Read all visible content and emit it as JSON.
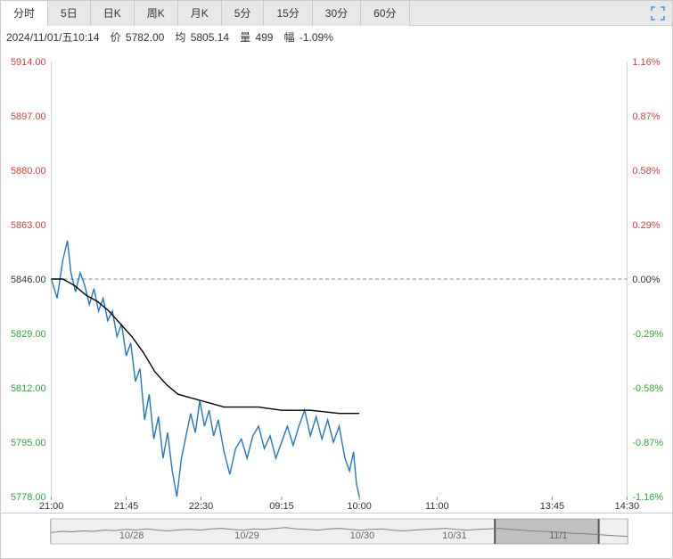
{
  "tabs": {
    "items": [
      "分时",
      "5日",
      "日K",
      "周K",
      "月K",
      "5分",
      "15分",
      "30分",
      "60分"
    ],
    "active_index": 0
  },
  "info": {
    "datetime": "2024/11/01/五10:14",
    "price_label": "价",
    "price": "5782.00",
    "avg_label": "均",
    "avg": "5805.14",
    "vol_label": "量",
    "vol": "499",
    "pct_label": "幅",
    "pct": "-1.09%"
  },
  "chart": {
    "type": "line",
    "center_value": 5846.0,
    "ylim": [
      5778.0,
      5914.0
    ],
    "left_ticks": [
      {
        "v": 5914.0,
        "label": "5914.00",
        "color": "#d83d3d"
      },
      {
        "v": 5897.0,
        "label": "5897.00",
        "color": "#d83d3d"
      },
      {
        "v": 5880.0,
        "label": "5880.00",
        "color": "#d83d3d"
      },
      {
        "v": 5863.0,
        "label": "5863.00",
        "color": "#d83d3d"
      },
      {
        "v": 5846.0,
        "label": "5846.00",
        "color": "#333333"
      },
      {
        "v": 5829.0,
        "label": "5829.00",
        "color": "#2ea836"
      },
      {
        "v": 5812.0,
        "label": "5812.00",
        "color": "#2ea836"
      },
      {
        "v": 5795.0,
        "label": "5795.00",
        "color": "#2ea836"
      },
      {
        "v": 5778.0,
        "label": "5778.00",
        "color": "#2ea836"
      }
    ],
    "right_ticks": [
      {
        "v": 5914.0,
        "label": "1.16%",
        "color": "#d83d3d"
      },
      {
        "v": 5897.0,
        "label": "0.87%",
        "color": "#d83d3d"
      },
      {
        "v": 5880.0,
        "label": "0.58%",
        "color": "#d83d3d"
      },
      {
        "v": 5863.0,
        "label": "0.29%",
        "color": "#d83d3d"
      },
      {
        "v": 5846.0,
        "label": "0.00%",
        "color": "#333333"
      },
      {
        "v": 5829.0,
        "label": "-0.29%",
        "color": "#2ea836"
      },
      {
        "v": 5812.0,
        "label": "-0.58%",
        "color": "#2ea836"
      },
      {
        "v": 5795.0,
        "label": "-0.87%",
        "color": "#2ea836"
      },
      {
        "v": 5778.0,
        "label": "-1.16%",
        "color": "#2ea836"
      }
    ],
    "x_ticks": [
      {
        "t": 0.0,
        "label": "21:00"
      },
      {
        "t": 0.13,
        "label": "21:45"
      },
      {
        "t": 0.26,
        "label": "22:30"
      },
      {
        "t": 0.4,
        "label": "09:15"
      },
      {
        "t": 0.535,
        "label": "10:00"
      },
      {
        "t": 0.67,
        "label": "11:00"
      },
      {
        "t": 0.87,
        "label": "13:45"
      },
      {
        "t": 1.0,
        "label": "14:30"
      }
    ],
    "grid_color": "#d0d0d0",
    "price_line_color": "#2176c7",
    "avg_line_color": "#000000",
    "price_line_width": 1.4,
    "avg_line_width": 1.4,
    "price_series": [
      {
        "t": 0.0,
        "v": 5846
      },
      {
        "t": 0.01,
        "v": 5840
      },
      {
        "t": 0.02,
        "v": 5852
      },
      {
        "t": 0.028,
        "v": 5858
      },
      {
        "t": 0.034,
        "v": 5848
      },
      {
        "t": 0.042,
        "v": 5842
      },
      {
        "t": 0.05,
        "v": 5848
      },
      {
        "t": 0.058,
        "v": 5844
      },
      {
        "t": 0.066,
        "v": 5838
      },
      {
        "t": 0.074,
        "v": 5843
      },
      {
        "t": 0.082,
        "v": 5836
      },
      {
        "t": 0.09,
        "v": 5840
      },
      {
        "t": 0.098,
        "v": 5833
      },
      {
        "t": 0.106,
        "v": 5836
      },
      {
        "t": 0.114,
        "v": 5828
      },
      {
        "t": 0.122,
        "v": 5832
      },
      {
        "t": 0.13,
        "v": 5822
      },
      {
        "t": 0.138,
        "v": 5826
      },
      {
        "t": 0.146,
        "v": 5814
      },
      {
        "t": 0.154,
        "v": 5818
      },
      {
        "t": 0.162,
        "v": 5802
      },
      {
        "t": 0.17,
        "v": 5810
      },
      {
        "t": 0.178,
        "v": 5796
      },
      {
        "t": 0.186,
        "v": 5803
      },
      {
        "t": 0.194,
        "v": 5790
      },
      {
        "t": 0.202,
        "v": 5798
      },
      {
        "t": 0.21,
        "v": 5786
      },
      {
        "t": 0.218,
        "v": 5778
      },
      {
        "t": 0.226,
        "v": 5790
      },
      {
        "t": 0.234,
        "v": 5797
      },
      {
        "t": 0.242,
        "v": 5804
      },
      {
        "t": 0.25,
        "v": 5798
      },
      {
        "t": 0.258,
        "v": 5808
      },
      {
        "t": 0.266,
        "v": 5800
      },
      {
        "t": 0.274,
        "v": 5805
      },
      {
        "t": 0.282,
        "v": 5797
      },
      {
        "t": 0.29,
        "v": 5802
      },
      {
        "t": 0.3,
        "v": 5792
      },
      {
        "t": 0.31,
        "v": 5785
      },
      {
        "t": 0.32,
        "v": 5793
      },
      {
        "t": 0.33,
        "v": 5796
      },
      {
        "t": 0.34,
        "v": 5790
      },
      {
        "t": 0.35,
        "v": 5797
      },
      {
        "t": 0.36,
        "v": 5800
      },
      {
        "t": 0.37,
        "v": 5793
      },
      {
        "t": 0.38,
        "v": 5797
      },
      {
        "t": 0.39,
        "v": 5790
      },
      {
        "t": 0.4,
        "v": 5795
      },
      {
        "t": 0.41,
        "v": 5800
      },
      {
        "t": 0.42,
        "v": 5794
      },
      {
        "t": 0.43,
        "v": 5800
      },
      {
        "t": 0.44,
        "v": 5805
      },
      {
        "t": 0.45,
        "v": 5797
      },
      {
        "t": 0.46,
        "v": 5803
      },
      {
        "t": 0.47,
        "v": 5796
      },
      {
        "t": 0.48,
        "v": 5802
      },
      {
        "t": 0.49,
        "v": 5795
      },
      {
        "t": 0.5,
        "v": 5800
      },
      {
        "t": 0.51,
        "v": 5790
      },
      {
        "t": 0.518,
        "v": 5786
      },
      {
        "t": 0.525,
        "v": 5792
      },
      {
        "t": 0.53,
        "v": 5782
      },
      {
        "t": 0.535,
        "v": 5778
      }
    ],
    "avg_series": [
      {
        "t": 0.0,
        "v": 5846
      },
      {
        "t": 0.02,
        "v": 5846
      },
      {
        "t": 0.04,
        "v": 5844
      },
      {
        "t": 0.06,
        "v": 5841
      },
      {
        "t": 0.08,
        "v": 5839
      },
      {
        "t": 0.1,
        "v": 5836
      },
      {
        "t": 0.12,
        "v": 5832
      },
      {
        "t": 0.14,
        "v": 5828
      },
      {
        "t": 0.16,
        "v": 5823
      },
      {
        "t": 0.18,
        "v": 5817
      },
      {
        "t": 0.2,
        "v": 5813
      },
      {
        "t": 0.22,
        "v": 5810
      },
      {
        "t": 0.24,
        "v": 5809
      },
      {
        "t": 0.26,
        "v": 5808
      },
      {
        "t": 0.28,
        "v": 5807
      },
      {
        "t": 0.3,
        "v": 5806
      },
      {
        "t": 0.33,
        "v": 5806
      },
      {
        "t": 0.36,
        "v": 5806
      },
      {
        "t": 0.4,
        "v": 5805
      },
      {
        "t": 0.45,
        "v": 5805
      },
      {
        "t": 0.5,
        "v": 5804
      },
      {
        "t": 0.535,
        "v": 5804
      }
    ]
  },
  "timeline": {
    "bg_left_color": "#f0f0f0",
    "bg_right_color": "#d8d8d8",
    "line_color": "#808080",
    "labels": [
      {
        "t": 0.14,
        "label": "10/28"
      },
      {
        "t": 0.34,
        "label": "10/29"
      },
      {
        "t": 0.54,
        "label": "10/30"
      },
      {
        "t": 0.7,
        "label": "10/31"
      },
      {
        "t": 0.88,
        "label": "11/1"
      }
    ],
    "brush": {
      "from": 0.77,
      "to": 0.95,
      "color": "#888888",
      "opacity": 0.45
    },
    "spark": [
      0.45,
      0.5,
      0.48,
      0.52,
      0.5,
      0.55,
      0.53,
      0.58,
      0.56,
      0.6,
      0.55,
      0.52,
      0.56,
      0.58,
      0.55,
      0.6,
      0.62,
      0.58,
      0.55,
      0.6,
      0.58,
      0.62,
      0.65,
      0.6,
      0.58,
      0.55,
      0.6,
      0.62,
      0.58,
      0.55,
      0.58,
      0.6,
      0.55,
      0.52,
      0.55,
      0.58,
      0.6,
      0.62,
      0.58,
      0.55,
      0.58,
      0.6,
      0.62,
      0.58,
      0.55,
      0.52,
      0.5,
      0.48,
      0.45,
      0.42,
      0.4,
      0.38,
      0.35,
      0.32,
      0.3
    ]
  }
}
